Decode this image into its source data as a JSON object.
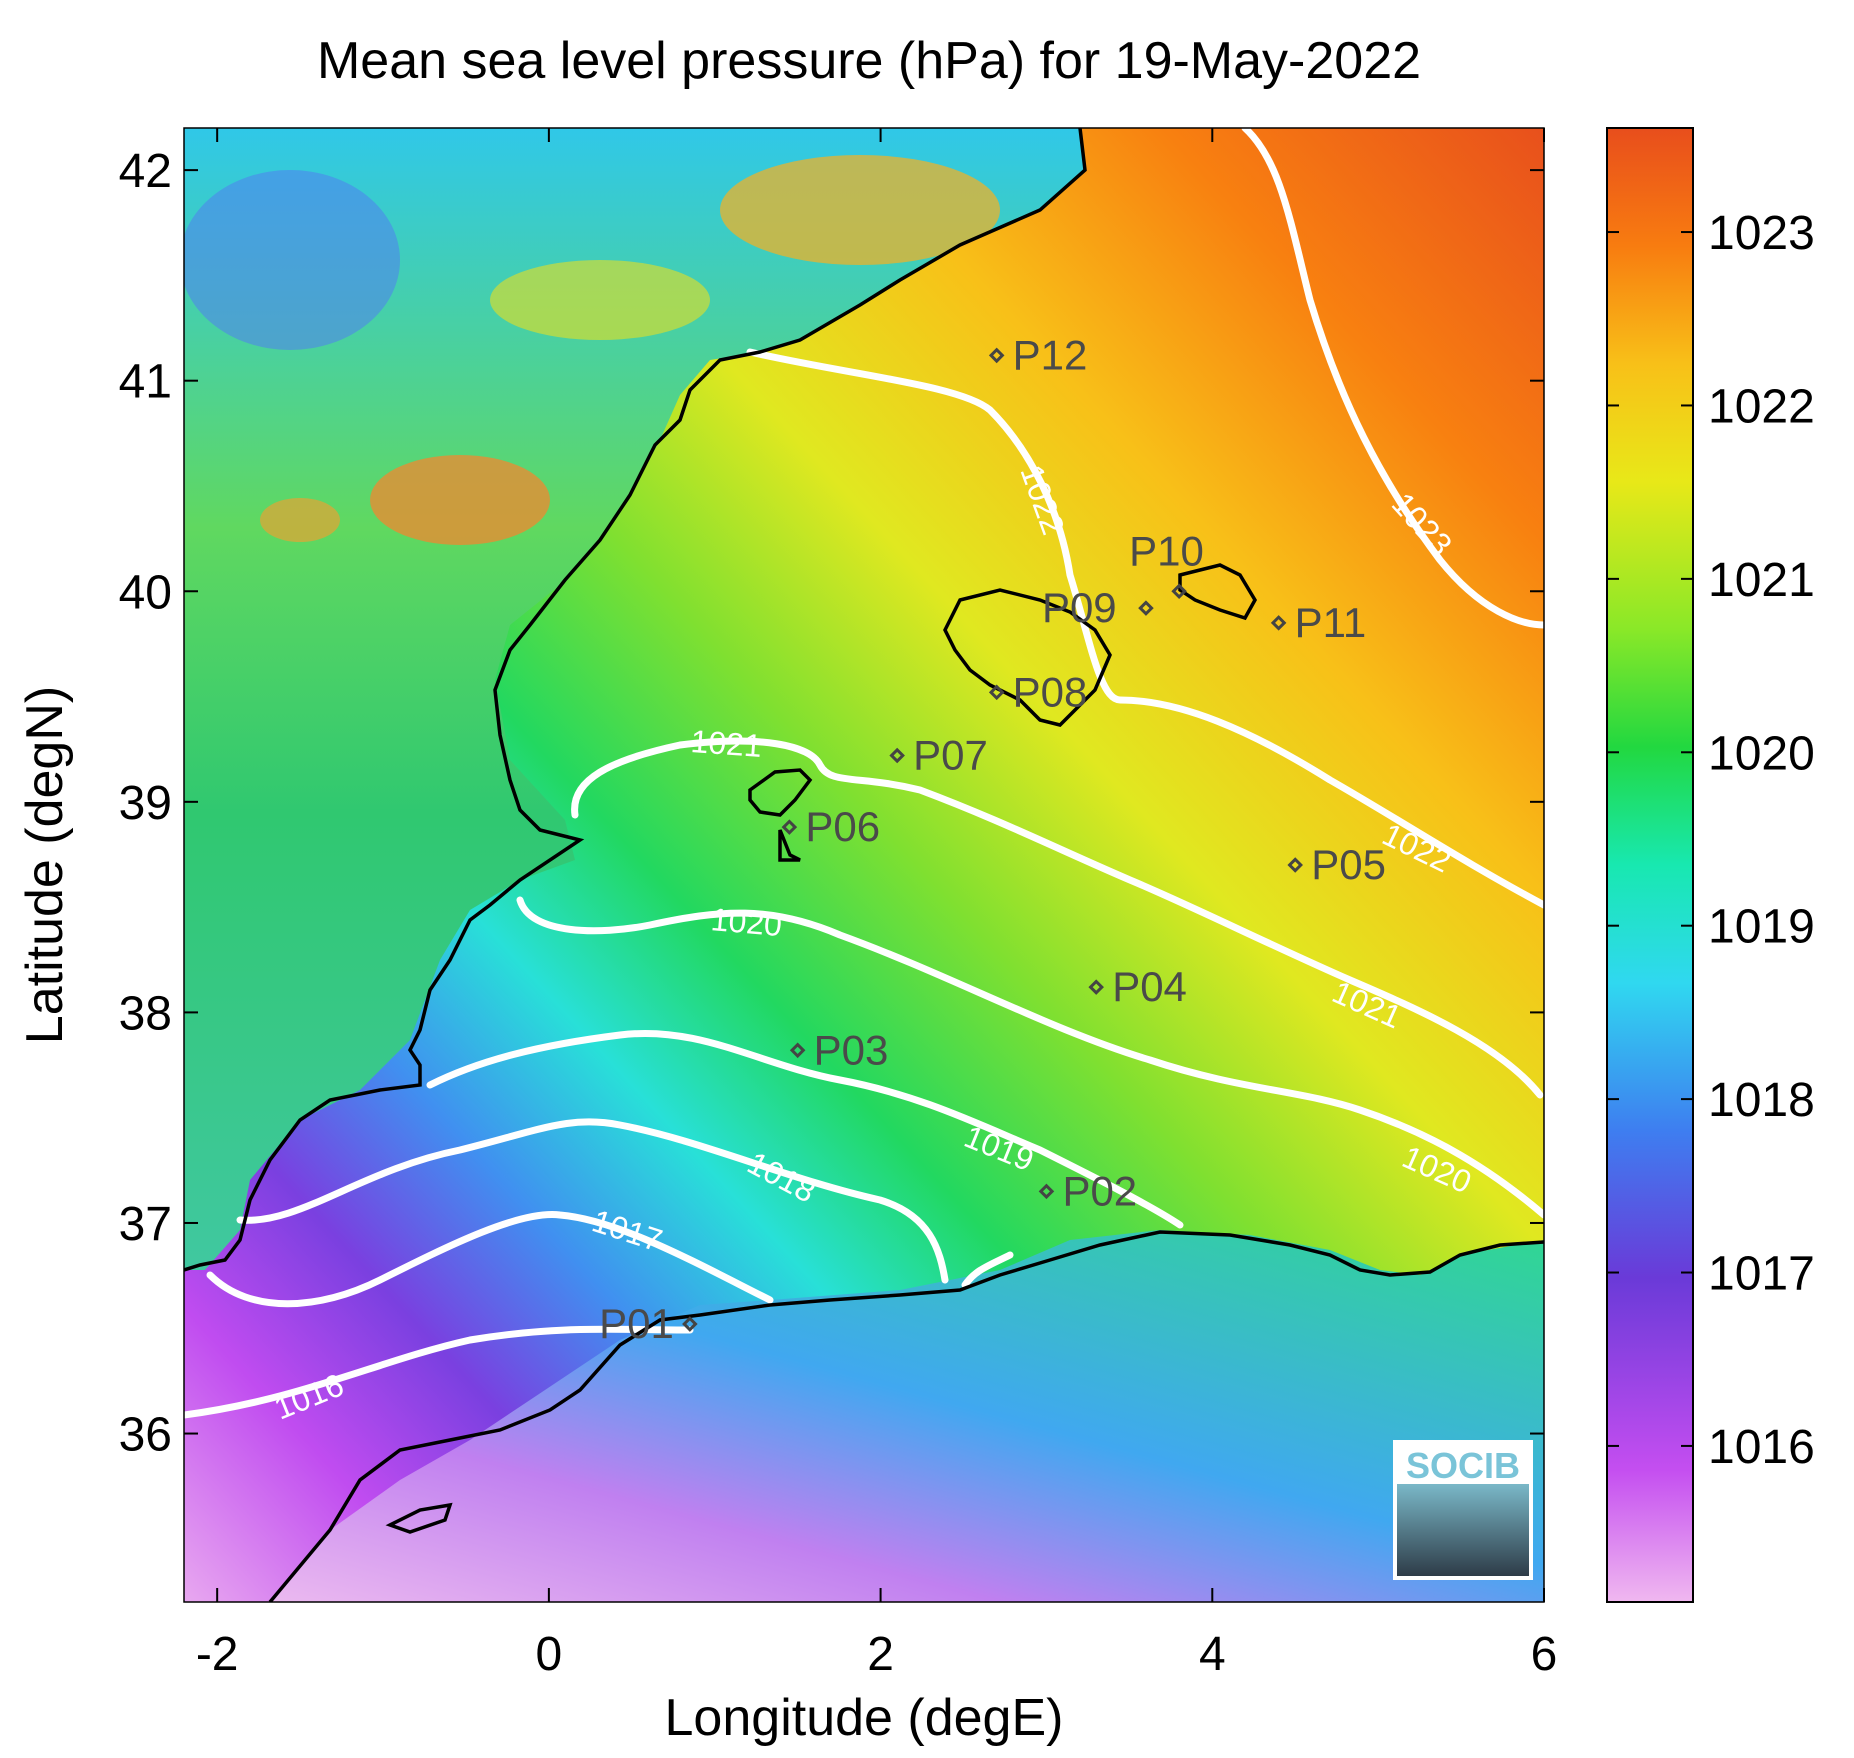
{
  "title": "Mean sea level pressure (hPa) for 19-May-2022",
  "x_axis": {
    "label": "Longitude (degE)",
    "range": [
      -2.2,
      6.0
    ],
    "ticks": [
      -2,
      0,
      2,
      4,
      6
    ]
  },
  "y_axis": {
    "label": "Latitude (degN)",
    "range": [
      35.2,
      42.2
    ],
    "ticks": [
      36,
      37,
      38,
      39,
      40,
      41,
      42
    ]
  },
  "colorbar": {
    "range": [
      1015.1,
      1023.6
    ],
    "ticks": [
      1016,
      1017,
      1018,
      1019,
      1020,
      1021,
      1022,
      1023
    ],
    "colors": [
      "#f0b8f0",
      "#c44ef0",
      "#6a3ad8",
      "#3e7ef0",
      "#30d8f0",
      "#18e8b0",
      "#22d840",
      "#8ae828",
      "#e8e818",
      "#f8c018",
      "#f87c10",
      "#e84e1c"
    ]
  },
  "points": [
    {
      "name": "P01",
      "lon": 0.85,
      "lat": 36.52
    },
    {
      "name": "P02",
      "lon": 3.0,
      "lat": 37.15
    },
    {
      "name": "P03",
      "lon": 1.5,
      "lat": 37.82
    },
    {
      "name": "P04",
      "lon": 3.3,
      "lat": 38.12
    },
    {
      "name": "P05",
      "lon": 4.5,
      "lat": 38.7
    },
    {
      "name": "P06",
      "lon": 1.45,
      "lat": 38.88
    },
    {
      "name": "P07",
      "lon": 2.1,
      "lat": 39.22
    },
    {
      "name": "P08",
      "lon": 2.7,
      "lat": 39.52
    },
    {
      "name": "P09",
      "lon": 3.6,
      "lat": 39.92
    },
    {
      "name": "P10",
      "lon": 3.8,
      "lat": 40.0
    },
    {
      "name": "P11",
      "lon": 4.4,
      "lat": 39.85
    },
    {
      "name": "P12",
      "lon": 2.7,
      "lat": 41.12
    }
  ],
  "isobars": [
    {
      "value": "1016",
      "label": "1016"
    },
    {
      "value": "1017",
      "label": "1017"
    },
    {
      "value": "1018",
      "label": "1018"
    },
    {
      "value": "1019",
      "label": "1019"
    },
    {
      "value": "1020",
      "label": "1020"
    },
    {
      "value": "1021",
      "label": "1021"
    },
    {
      "value": "1022",
      "label": "1022"
    },
    {
      "value": "1023",
      "label": "1023"
    }
  ],
  "logo": {
    "text": "SOCIB"
  }
}
